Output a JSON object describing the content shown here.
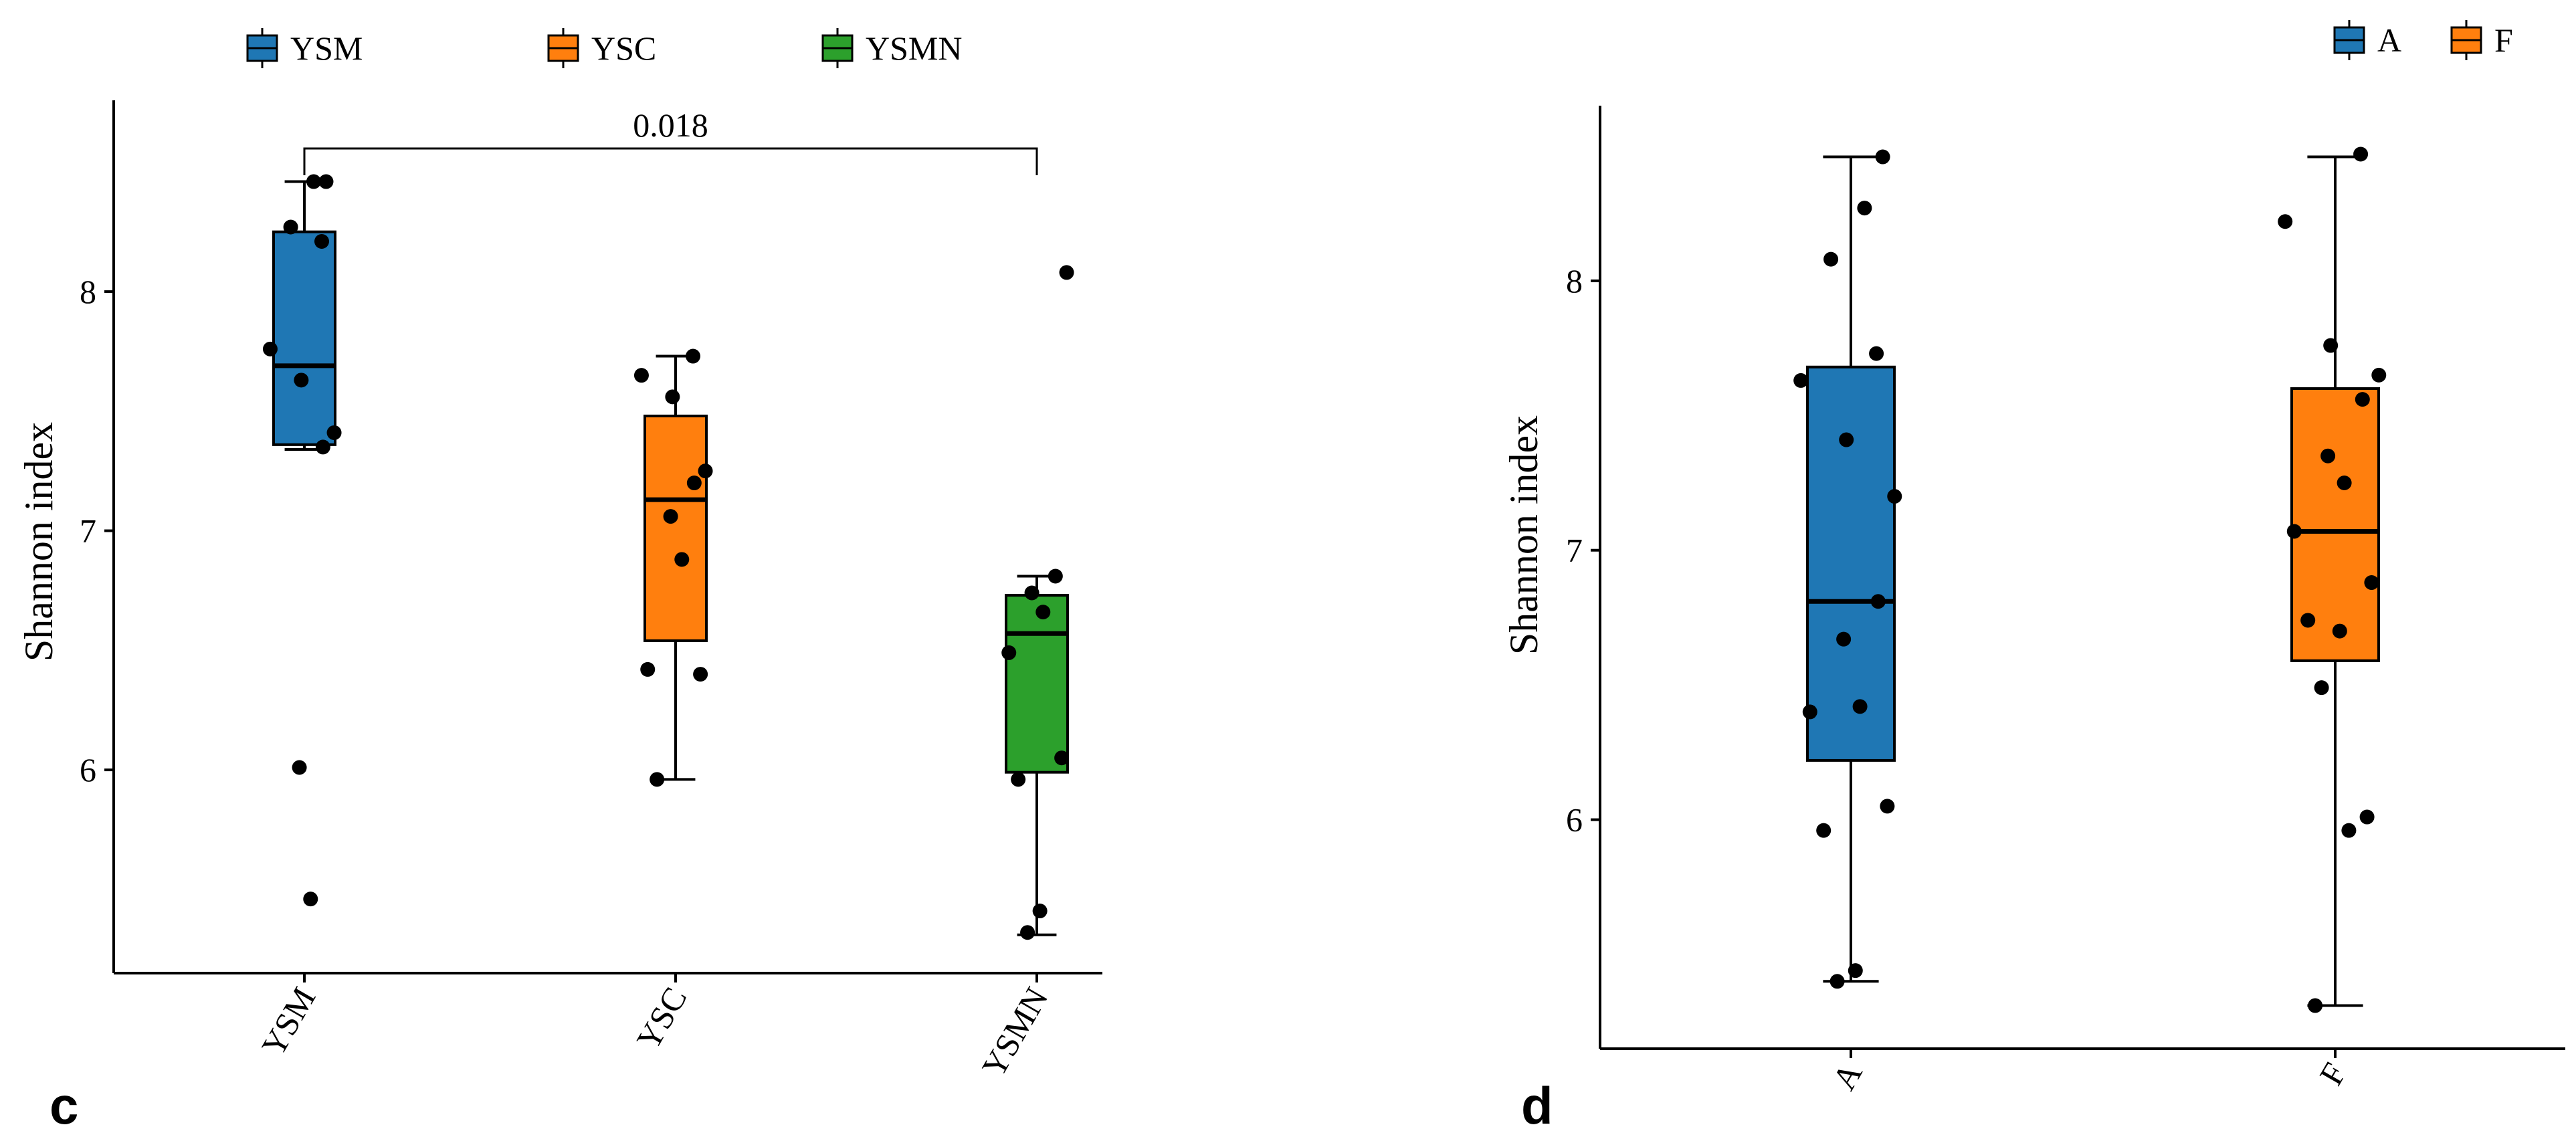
{
  "chart_data": [
    {
      "type": "box",
      "panel_label": "c",
      "xlabel": "",
      "ylabel": "Shannon index",
      "ylim": [
        5.15,
        8.8
      ],
      "yticks": [
        6,
        7,
        8
      ],
      "ytick_labels": [
        "6",
        "7",
        "8"
      ],
      "categories": [
        "YSM",
        "YSC",
        "YSMN"
      ],
      "legend": {
        "position": "top",
        "items": [
          "YSM",
          "YSC",
          "YSMN"
        ]
      },
      "colors": [
        "#1f77b4",
        "#ff7f0e",
        "#2ca02c"
      ],
      "boxes": [
        {
          "name": "YSM",
          "whisker_low": 7.34,
          "q1": 7.36,
          "median": 7.69,
          "q3": 8.25,
          "whisker_high": 8.46
        },
        {
          "name": "YSC",
          "whisker_low": 5.96,
          "q1": 6.54,
          "median": 7.13,
          "q3": 7.48,
          "whisker_high": 7.73
        },
        {
          "name": "YSMN",
          "whisker_low": 5.31,
          "q1": 5.99,
          "median": 6.57,
          "q3": 6.73,
          "whisker_high": 6.81
        }
      ],
      "points": [
        {
          "group": "YSM",
          "values": [
            8.46,
            8.46,
            8.27,
            8.21,
            7.76,
            7.63,
            7.41,
            7.35,
            6.01,
            5.46
          ]
        },
        {
          "group": "YSC",
          "values": [
            7.73,
            7.65,
            7.56,
            7.25,
            7.2,
            7.06,
            6.88,
            6.42,
            6.4,
            5.96
          ]
        },
        {
          "group": "YSMN",
          "values": [
            8.08,
            6.81,
            6.74,
            6.66,
            6.49,
            6.05,
            5.96,
            5.41,
            5.32
          ]
        }
      ],
      "comparison": {
        "groups": [
          "YSM",
          "YSMN"
        ],
        "p_value": "0.018"
      }
    },
    {
      "type": "box",
      "panel_label": "d",
      "xlabel": "",
      "ylabel": "Shannon index",
      "ylim": [
        5.15,
        8.65
      ],
      "yticks": [
        6,
        7,
        8
      ],
      "ytick_labels": [
        "6",
        "7",
        "8"
      ],
      "categories": [
        "A",
        "F"
      ],
      "legend": {
        "position": "top-right",
        "items": [
          "A",
          "F"
        ]
      },
      "colors": [
        "#1f77b4",
        "#ff7f0e"
      ],
      "boxes": [
        {
          "name": "A",
          "whisker_low": 5.4,
          "q1": 6.22,
          "median": 6.81,
          "q3": 7.68,
          "whisker_high": 8.46
        },
        {
          "name": "F",
          "whisker_low": 5.31,
          "q1": 6.59,
          "median": 7.07,
          "q3": 7.6,
          "whisker_high": 8.46
        }
      ],
      "points": [
        {
          "group": "A",
          "values": [
            8.46,
            8.27,
            8.08,
            7.73,
            7.63,
            7.41,
            7.2,
            6.81,
            6.67,
            6.42,
            6.4,
            6.05,
            5.96,
            5.44,
            5.4
          ]
        },
        {
          "group": "F",
          "values": [
            8.47,
            8.22,
            7.76,
            7.65,
            7.56,
            7.35,
            7.25,
            7.07,
            6.88,
            6.74,
            6.7,
            6.49,
            6.01,
            5.96,
            5.31
          ]
        }
      ]
    }
  ]
}
